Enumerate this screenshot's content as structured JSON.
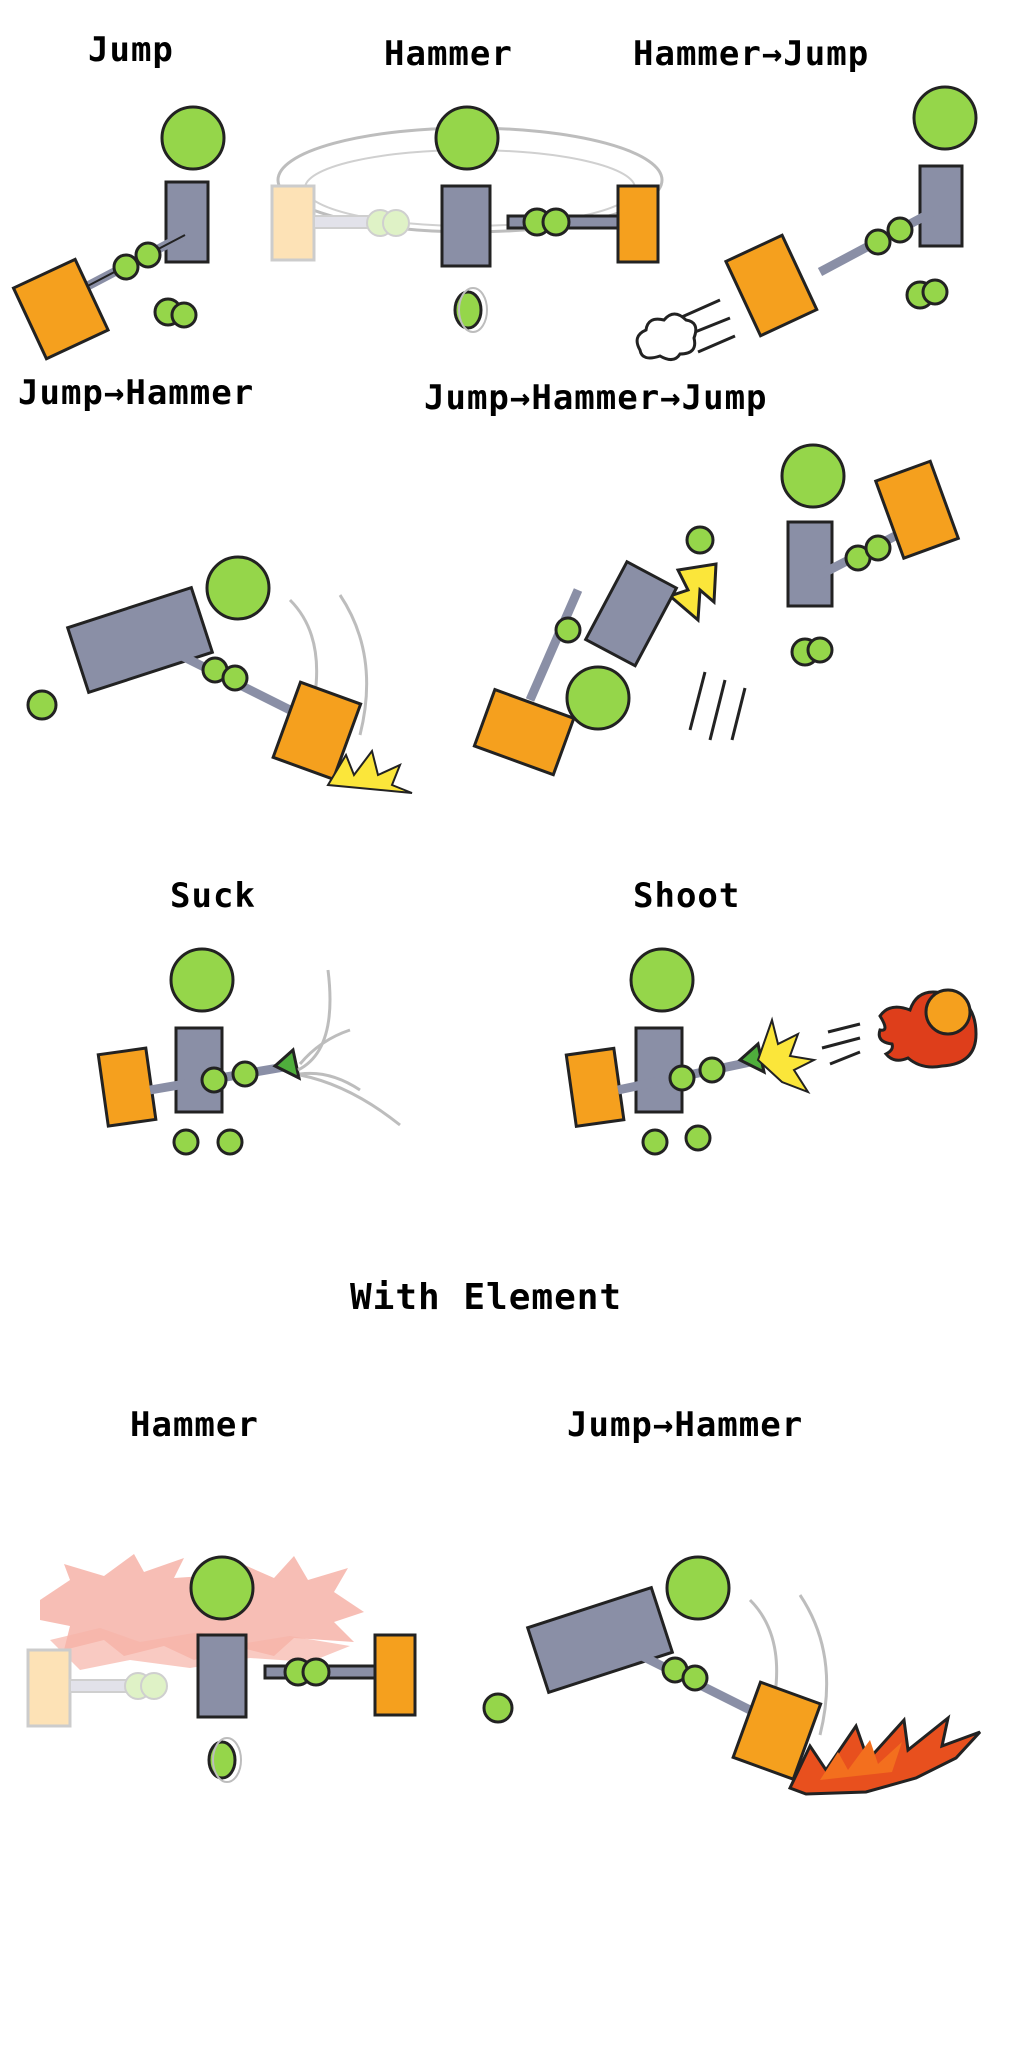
{
  "labels": {
    "jump": "Jump",
    "hammer": "Hammer",
    "hammer_jump": "Hammer→Jump",
    "jump_hammer": "Jump→Hammer",
    "jump_hammer_jump": "Jump→Hammer→Jump",
    "suck": "Suck",
    "shoot": "Shoot",
    "with_element": "With Element",
    "elem_hammer": "Hammer",
    "elem_jump_hammer": "Jump→Hammer"
  },
  "colors": {
    "head": "#95d64a",
    "body": "#8a8fa6",
    "hammer": "#f5a01e",
    "outline": "#222222",
    "fire": "#e8501e",
    "spark": "#fbe63a",
    "trail": "#bdbdbd",
    "ghost_hammer": "#fde2b6",
    "fireball": "#de3e1b"
  }
}
